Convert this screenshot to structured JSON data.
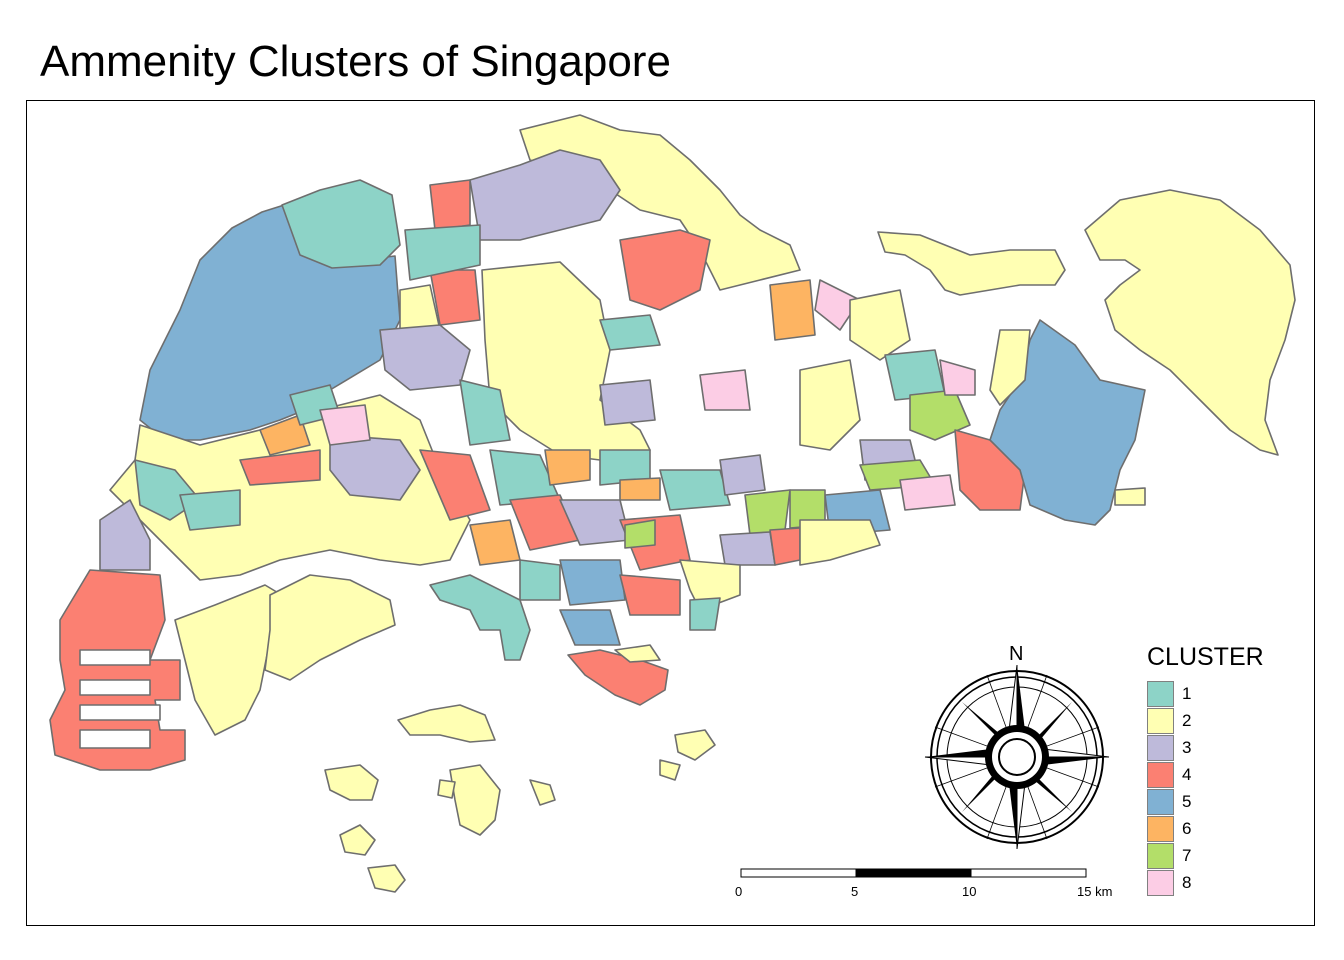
{
  "title": "Ammenity Clusters of Singapore",
  "legend": {
    "title": "CLUSTER",
    "items": [
      {
        "label": "1",
        "color": "#8dd3c7"
      },
      {
        "label": "2",
        "color": "#ffffb3"
      },
      {
        "label": "3",
        "color": "#bebada"
      },
      {
        "label": "4",
        "color": "#fb8072"
      },
      {
        "label": "5",
        "color": "#80b1d3"
      },
      {
        "label": "6",
        "color": "#fdb462"
      },
      {
        "label": "7",
        "color": "#b3de69"
      },
      {
        "label": "8",
        "color": "#fccde5"
      }
    ]
  },
  "compass": {
    "north_label": "N"
  },
  "scale_bar": {
    "labels": [
      "0",
      "5",
      "10",
      "15 km"
    ]
  }
}
